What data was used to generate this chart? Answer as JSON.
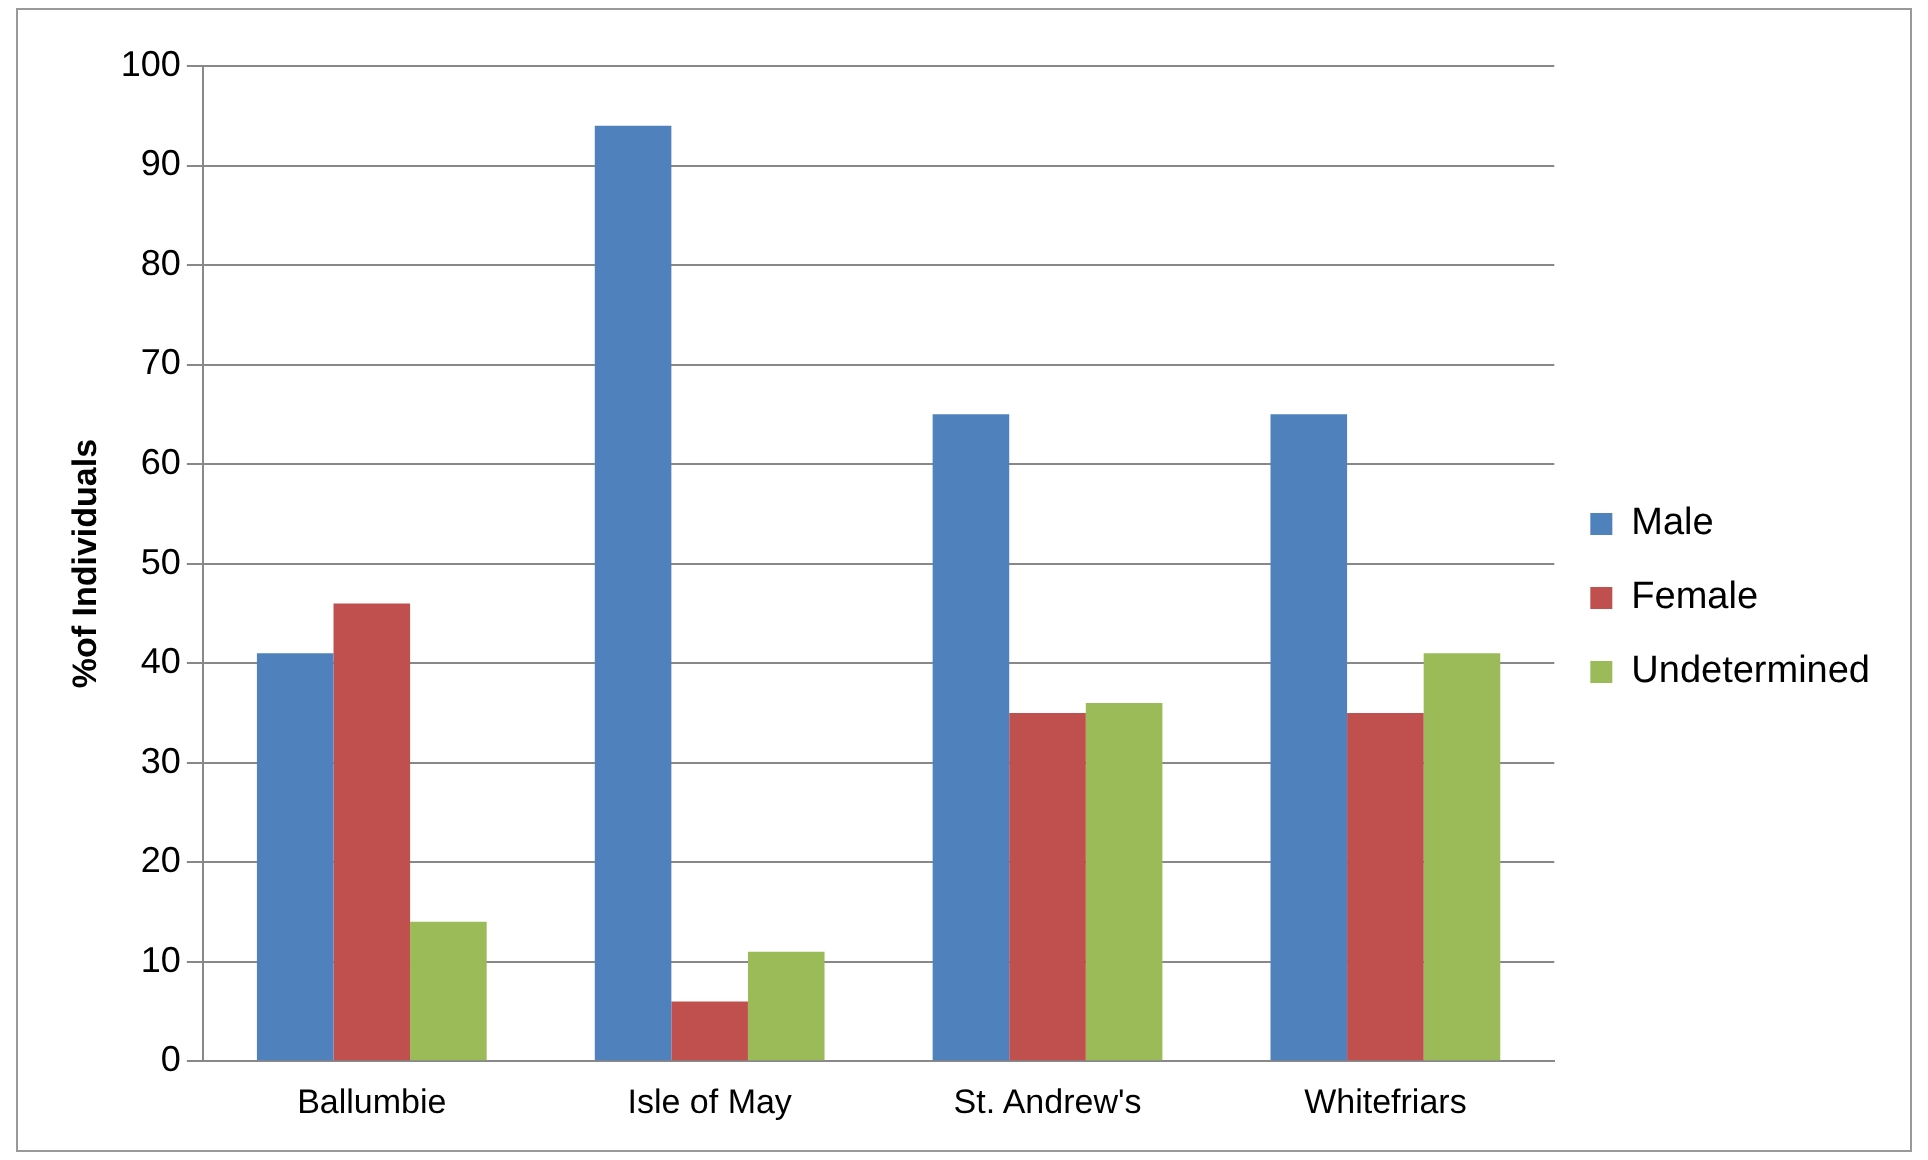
{
  "chart_data": {
    "type": "bar",
    "ylabel": "%of Individuals",
    "categories": [
      "Ballumbie",
      "Isle of May",
      "St. Andrew's",
      "Whitefriars"
    ],
    "series": [
      {
        "name": "Male",
        "color": "#4f81bd",
        "values": [
          41,
          94,
          65,
          65
        ]
      },
      {
        "name": "Female",
        "color": "#c0504d",
        "values": [
          46,
          6,
          35,
          35
        ]
      },
      {
        "name": "Undetermined",
        "color": "#9bbb59",
        "values": [
          14,
          11,
          36,
          41
        ]
      }
    ],
    "ylim": [
      0,
      100
    ],
    "yticks": [
      0,
      10,
      20,
      30,
      40,
      50,
      60,
      70,
      80,
      90,
      100
    ],
    "grid": "y",
    "legend": "right"
  }
}
